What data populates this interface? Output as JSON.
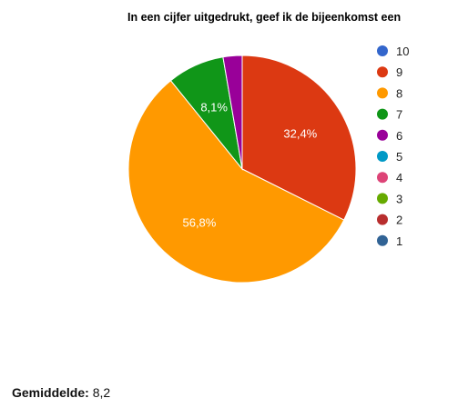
{
  "chart_data": {
    "type": "pie",
    "title": "In een cijfer uitgedrukt, geef ik de bijeenkomst een",
    "categories": [
      "10",
      "9",
      "8",
      "7",
      "6",
      "5",
      "4",
      "3",
      "2",
      "1"
    ],
    "values": [
      0,
      32.4,
      56.8,
      8.1,
      2.7,
      0,
      0,
      0,
      0,
      0
    ],
    "data_labels": [
      "",
      "32,4%",
      "56,8%",
      "8,1%",
      "",
      "",
      "",
      "",
      "",
      ""
    ],
    "colors": [
      "#3366cc",
      "#dc3912",
      "#ff9900",
      "#109618",
      "#990099",
      "#0099c6",
      "#dd4477",
      "#66aa00",
      "#b82e2e",
      "#316395"
    ],
    "legend_position": "right"
  },
  "summary": {
    "label": "Gemiddelde:",
    "value": "8,2"
  }
}
